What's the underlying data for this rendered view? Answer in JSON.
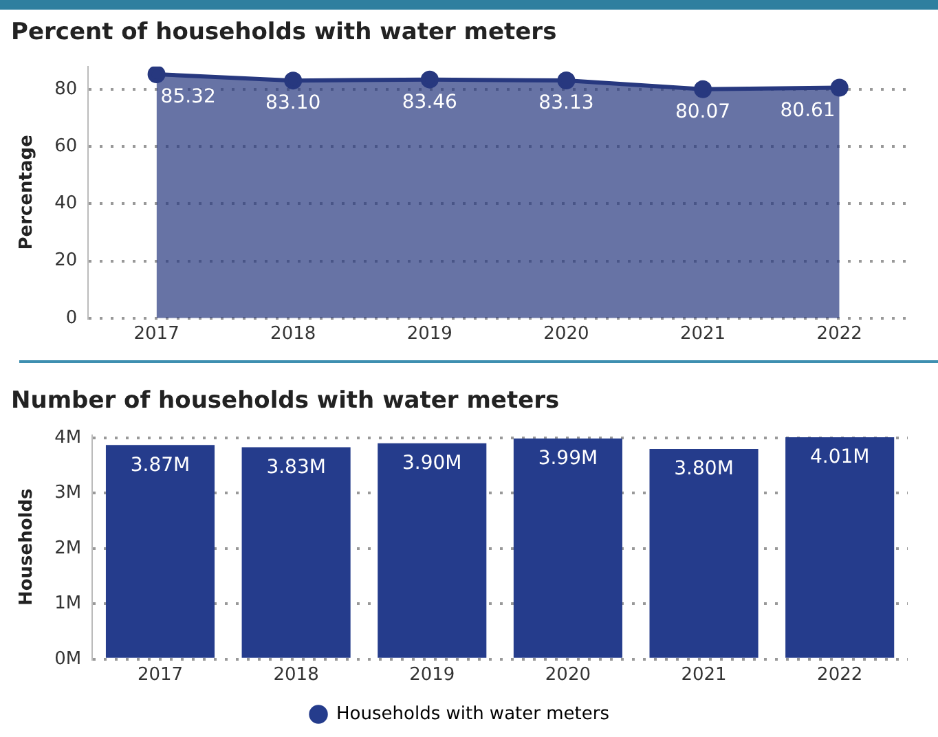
{
  "chart_data": [
    {
      "type": "area",
      "title": "Percent of households with water meters",
      "ylabel": "Percentage",
      "categories": [
        "2017",
        "2018",
        "2019",
        "2020",
        "2021",
        "2022"
      ],
      "series": [
        {
          "color": "#27387f",
          "values": [
            85.32,
            83.1,
            83.46,
            83.13,
            80.07,
            80.61
          ]
        }
      ],
      "value_labels": [
        "85.32",
        "83.10",
        "83.46",
        "83.13",
        "80.07",
        "80.61"
      ],
      "ylim": [
        0,
        88
      ],
      "yticks": [
        0,
        20,
        40,
        60,
        80
      ],
      "grid": "y",
      "marker": "circle",
      "legend": false
    },
    {
      "type": "bar",
      "title": "Number of households with water meters",
      "ylabel": "Households",
      "categories": [
        "2017",
        "2018",
        "2019",
        "2020",
        "2021",
        "2022"
      ],
      "series": [
        {
          "name": "Households with water meters",
          "color": "#253c8c",
          "values": [
            3870000,
            3830000,
            3900000,
            3990000,
            3800000,
            4010000
          ]
        }
      ],
      "value_labels": [
        "3.87M",
        "3.83M",
        "3.90M",
        "3.99M",
        "3.80M",
        "4.01M"
      ],
      "ylim": [
        0,
        4050000
      ],
      "yticks": [
        {
          "value": 0,
          "label": "0M"
        },
        {
          "value": 1000000,
          "label": "1M"
        },
        {
          "value": 2000000,
          "label": "2M"
        },
        {
          "value": 3000000,
          "label": "3M"
        },
        {
          "value": 4000000,
          "label": "4M"
        }
      ],
      "grid": "y",
      "legend": "bottom"
    }
  ]
}
